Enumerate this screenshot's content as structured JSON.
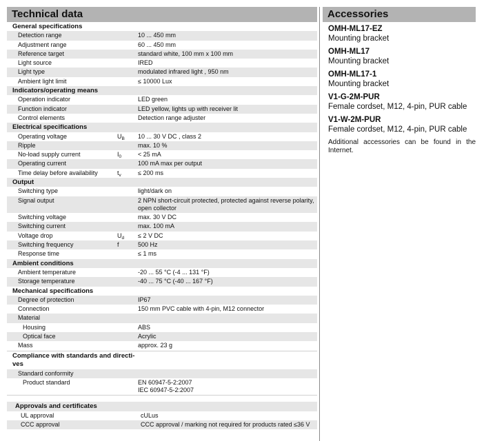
{
  "technical": {
    "title": "Technical data",
    "blocks": [
      {
        "sections": [
          {
            "title": "General specifications",
            "rows": [
              {
                "label": "Detection range",
                "value": "10 ... 450 mm"
              },
              {
                "label": "Adjustment range",
                "value": "60 ... 450 mm"
              },
              {
                "label": "Reference target",
                "value": "standard white, 100 mm x 100 mm"
              },
              {
                "label": "Light source",
                "value": "IRED"
              },
              {
                "label": "Light type",
                "value": "modulated infrared light , 950 nm"
              },
              {
                "label": "Ambient light limit",
                "value": "≤ 10000 Lux"
              }
            ]
          },
          {
            "title": "Indicators/operating means",
            "rows": [
              {
                "label": "Operation indicator",
                "value": "LED green"
              },
              {
                "label": "Function indicator",
                "value": "LED yellow, lights up with receiver lit"
              },
              {
                "label": "Control elements",
                "value": "Detection range  adjuster"
              }
            ]
          },
          {
            "title": "Electrical specifications",
            "rows": [
              {
                "label": "Operating voltage",
                "symbol": "U",
                "symbol_sub": "B",
                "value": "10 ... 30 V DC , class 2"
              },
              {
                "label": "Ripple",
                "value": "max. 10  %"
              },
              {
                "label": "No-load supply current",
                "symbol": "I",
                "symbol_sub": "0",
                "value": "< 25 mA"
              },
              {
                "label": "Operating current",
                "value": "100 mA max per output"
              },
              {
                "label": "Time delay before availability",
                "symbol": "t",
                "symbol_sub": "v",
                "value": "≤ 200 ms"
              }
            ]
          },
          {
            "title": "Output",
            "rows": [
              {
                "label": "Switching type",
                "value": "light/dark on"
              },
              {
                "label": "Signal output",
                "value": "2 NPN short-circuit protected, protected against reverse polarity, open collector",
                "multi": true
              },
              {
                "label": "Switching voltage",
                "value": "max. 30 V DC"
              },
              {
                "label": "Switching current",
                "value": "max. 100 mA"
              },
              {
                "label": "Voltage drop",
                "symbol": "U",
                "symbol_sub": "d",
                "value": "≤ 2 V DC"
              },
              {
                "label": "Switching frequency",
                "symbol": "f",
                "value": "500 Hz"
              },
              {
                "label": "Response time",
                "value": "≤ 1 ms"
              }
            ]
          },
          {
            "title": "Ambient conditions",
            "rows": [
              {
                "label": "Ambient temperature",
                "value": "-20 ... 55 °C (-4 ... 131 °F)"
              },
              {
                "label": "Storage temperature",
                "value": "-40 ... 75 °C (-40 ... 167 °F)"
              }
            ]
          },
          {
            "title": "Mechanical specifications",
            "rows": [
              {
                "label": "Degree of protection",
                "value": "IP67"
              },
              {
                "label": "Connection",
                "value": "150 mm PVC cable with 4-pin, M12 connector"
              },
              {
                "label": "Material",
                "value": ""
              },
              {
                "label": "Housing",
                "value": "ABS",
                "level": 2
              },
              {
                "label": "Optical face",
                "value": "Acrylic",
                "level": 2
              },
              {
                "label": "Mass",
                "value": "approx. 23 g"
              }
            ]
          }
        ]
      },
      {
        "sections": [
          {
            "title": "Compliance with standards and directi-ves",
            "wrap": true,
            "rows": [
              {
                "label": "Standard conformity",
                "value": ""
              },
              {
                "label": "Product standard",
                "value": "EN 60947-5-2:2007\nIEC 60947-5-2:2007",
                "level": 2,
                "multi": true
              }
            ]
          }
        ]
      },
      {
        "sections": [
          {
            "title": "Approvals and certificates",
            "rows": [
              {
                "label": "UL approval",
                "value": "cULus"
              },
              {
                "label": "CCC approval",
                "value": "CCC approval / marking not required for products rated ≤36 V"
              }
            ]
          }
        ]
      }
    ]
  },
  "accessories": {
    "title": "Accessories",
    "items": [
      {
        "code": "OMH-ML17-EZ",
        "description": "Mounting bracket"
      },
      {
        "code": "OMH-ML17",
        "description": "Mounting bracket"
      },
      {
        "code": "OMH-ML17-1",
        "description": "Mounting bracket"
      },
      {
        "code": "V1-G-2M-PUR",
        "description": "Female cordset, M12, 4-pin, PUR cable"
      },
      {
        "code": "V1-W-2M-PUR",
        "description": "Female cordset, M12, 4-pin, PUR cable"
      }
    ],
    "note": "Additional accessories can be found in the Internet."
  },
  "colors": {
    "title_bar": "#b3b3b3",
    "row_shade": "#e6e6e6"
  }
}
